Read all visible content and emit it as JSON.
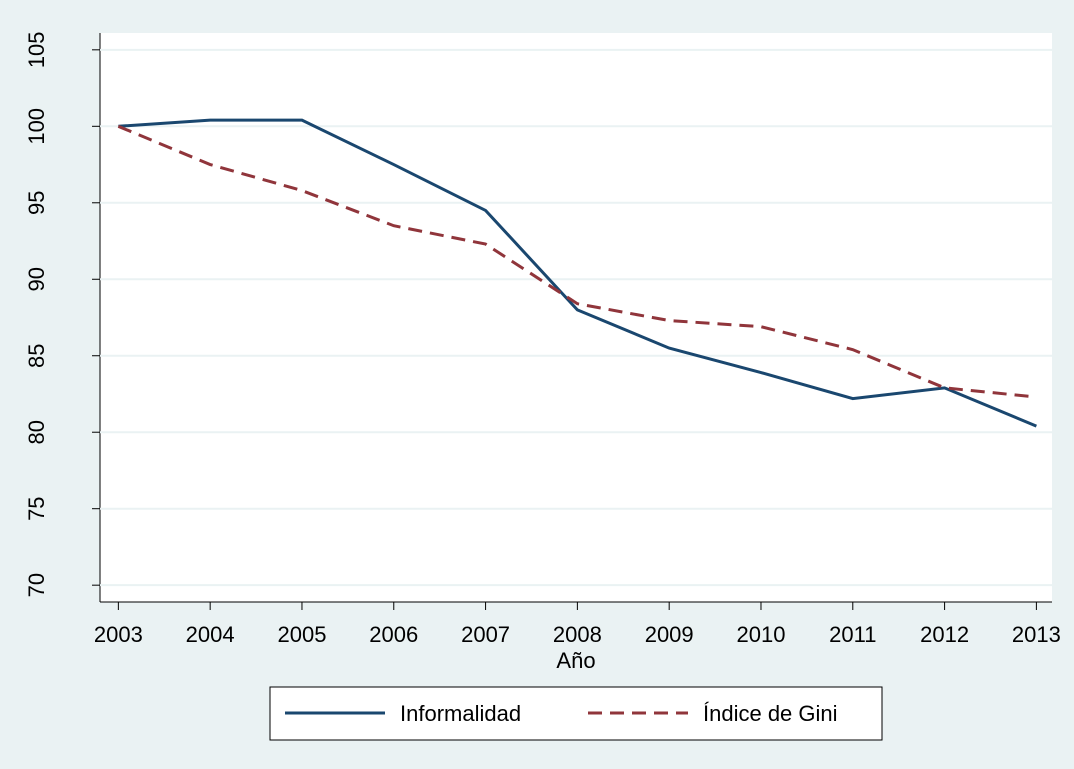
{
  "chart_data": {
    "type": "line",
    "xlabel": "Año",
    "x": [
      2003,
      2004,
      2005,
      2006,
      2007,
      2008,
      2009,
      2010,
      2011,
      2012,
      2013
    ],
    "series": [
      {
        "name": "Informalidad",
        "color": "#1a476f",
        "dash": false,
        "values": [
          100,
          100.4,
          100.4,
          97.5,
          94.5,
          88,
          85.5,
          83.9,
          82.2,
          82.9,
          80.4
        ]
      },
      {
        "name": "Índice de Gini",
        "color": "#90353b",
        "dash": true,
        "values": [
          100,
          97.5,
          95.8,
          93.5,
          92.3,
          88.4,
          87.3,
          86.9,
          85.4,
          82.9,
          82.3
        ]
      }
    ],
    "xlim": [
      2002.8,
      2013.17
    ],
    "xticks": [
      2003,
      2004,
      2005,
      2006,
      2007,
      2008,
      2009,
      2010,
      2011,
      2012,
      2013
    ],
    "ylim": [
      68.9,
      106.1
    ],
    "yticks": [
      70,
      75,
      80,
      85,
      90,
      95,
      100,
      105
    ],
    "grid": true,
    "legend": "bottom"
  }
}
